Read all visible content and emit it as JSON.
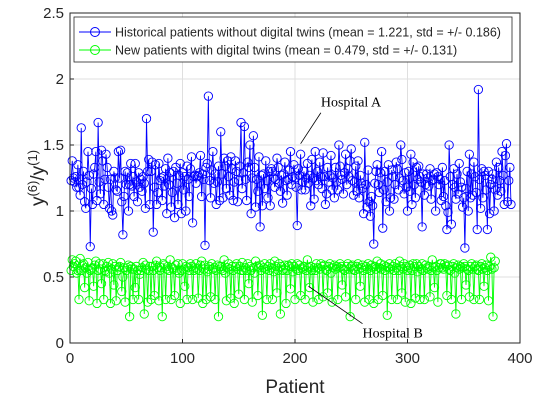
{
  "chart_data": {
    "type": "line",
    "title": "",
    "xlabel": "Patient",
    "ylabel": {
      "base": "y",
      "num": "(6)",
      "slash": "/y",
      "den": "(1)"
    },
    "xlim": [
      0,
      400
    ],
    "ylim": [
      0,
      2.5
    ],
    "xticks": [
      0,
      100,
      200,
      300,
      400
    ],
    "yticks": [
      0,
      0.5,
      1,
      1.5,
      2,
      2.5
    ],
    "xtick_labels": [
      "0",
      "100",
      "200",
      "300",
      "400"
    ],
    "ytick_labels": [
      "0",
      "0.5",
      "1",
      "1.5",
      "2",
      "2.5"
    ],
    "grid": true,
    "legend_position": "top",
    "marker": "circle",
    "series": [
      {
        "name": "Historical patients without digital twins (mean = 1.221, std = +/- 0.186)",
        "color": "#0000ff",
        "values": [
          1.23,
          1.38,
          1.25,
          1.22,
          1.26,
          1.18,
          1.35,
          1.18,
          1.12,
          1.63,
          1.2,
          1.3,
          1.07,
          1.02,
          1.22,
          1.45,
          1.27,
          0.73,
          1.17,
          1.05,
          1.28,
          1.33,
          1.45,
          1.08,
          1.67,
          1.22,
          1.13,
          1.46,
          1.38,
          1.05,
          1.24,
          1.43,
          1.33,
          1.18,
          1.02,
          1.24,
          1.0,
          0.97,
          1.3,
          1.25,
          1.16,
          1.15,
          1.45,
          1.25,
          1.46,
          1.07,
          0.82,
          1.11,
          1.3,
          1.2,
          1.29,
          1.0,
          1.2,
          1.36,
          1.19,
          1.26,
          1.11,
          1.36,
          1.22,
          1.07,
          1.29,
          1.18,
          1.24,
          1.15,
          1.26,
          1.21,
          1.02,
          1.7,
          1.3,
          1.39,
          1.05,
          1.3,
          1.37,
          0.84,
          1.18,
          1.35,
          1.05,
          1.14,
          1.36,
          1.23,
          1.25,
          1.08,
          1.26,
          1.19,
          1.32,
          0.98,
          1.4,
          1.2,
          1.29,
          1.03,
          1.14,
          1.3,
          0.95,
          1.33,
          1.21,
          1.05,
          1.27,
          1.36,
          0.98,
          1.29,
          1.16,
          1.26,
          1.0,
          1.34,
          1.24,
          1.11,
          1.32,
          1.41,
          0.91,
          1.26,
          1.27,
          1.21,
          1.26,
          1.27,
          1.29,
          1.42,
          1.11,
          1.28,
          1.24,
          0.74,
          1.33,
          1.36,
          1.87,
          1.23,
          1.1,
          1.31,
          1.45,
          1.21,
          1.28,
          1.05,
          1.22,
          1.34,
          1.08,
          1.6,
          1.28,
          1.1,
          1.4,
          1.34,
          1.17,
          1.38,
          1.26,
          1.12,
          1.41,
          1.32,
          1.08,
          1.22,
          1.38,
          1.3,
          1.07,
          1.23,
          1.34,
          1.67,
          1.17,
          1.29,
          1.64,
          1.24,
          1.08,
          1.37,
          1.33,
          1.5,
          0.98,
          1.25,
          1.57,
          1.33,
          1.03,
          1.24,
          1.15,
          1.41,
          0.88,
          1.27,
          1.04,
          1.28,
          1.17,
          1.38,
          1.23,
          1.1,
          1.3,
          1.04,
          1.32,
          1.3,
          1.25,
          1.18,
          1.24,
          1.4,
          1.33,
          1.21,
          1.15,
          1.27,
          1.06,
          1.28,
          1.37,
          1.23,
          1.12,
          1.24,
          1.31,
          1.45,
          1.2,
          1.26,
          1.35,
          1.25,
          1.18,
          0.89,
          1.32,
          1.27,
          1.43,
          1.16,
          1.22,
          1.3,
          1.16,
          1.25,
          1.36,
          1.21,
          1.27,
          1.04,
          1.39,
          1.25,
          1.09,
          1.45,
          1.23,
          1.3,
          1.2,
          1.37,
          1.26,
          1.17,
          1.44,
          1.26,
          1.05,
          1.13,
          1.33,
          1.22,
          1.27,
          1.42,
          1.16,
          1.25,
          1.1,
          1.33,
          1.22,
          1.16,
          1.5,
          1.34,
          1.27,
          1.24,
          1.13,
          1.29,
          1.43,
          1.2,
          1.32,
          1.26,
          1.38,
          1.47,
          1.23,
          1.12,
          1.22,
          1.34,
          1.15,
          1.38,
          1.1,
          1.27,
          1.21,
          1.17,
          0.98,
          1.52,
          1.2,
          1.03,
          1.31,
          1.07,
          0.96,
          1.11,
          1.04,
          0.75,
          1.21,
          1.3,
          1.35,
          1.2,
          1.14,
          1.29,
          1.45,
          0.87,
          1.16,
          1.3,
          1.07,
          1.22,
          1.35,
          1.0,
          1.1,
          1.31,
          1.26,
          1.09,
          1.2,
          1.37,
          1.32,
          1.16,
          1.25,
          1.5,
          1.39,
          1.23,
          1.13,
          1.29,
          1.18,
          1.0,
          1.3,
          1.15,
          1.43,
          1.05,
          1.37,
          1.2,
          1.1,
          1.33,
          1.24,
          1.34,
          1.26,
          1.22,
          0.88,
          1.28,
          1.12,
          1.2,
          1.28,
          1.25,
          1.19,
          1.32,
          1.09,
          1.23,
          1.24,
          1.28,
          1.0,
          1.29,
          1.26,
          1.2,
          1.24,
          1.08,
          1.33,
          1.11,
          1.23,
          1.04,
          0.86,
          0.99,
          1.5,
          1.26,
          0.9,
          1.2,
          1.32,
          1.18,
          1.09,
          1.28,
          1.13,
          1.36,
          1.22,
          1.18,
          1.03,
          1.1,
          0.72,
          1.17,
          1.3,
          1.0,
          1.43,
          1.1,
          1.28,
          1.12,
          1.37,
          1.26,
          1.14,
          0.86,
          1.92,
          1.24,
          1.02,
          1.32,
          1.1,
          1.3,
          1.27,
          1.16,
          0.86,
          1.3,
          0.98,
          1.2,
          1.24,
          1.28,
          1.0,
          1.16,
          1.37,
          1.12,
          1.33,
          1.23,
          1.15,
          1.45,
          1.27,
          1.05,
          1.42,
          1.51,
          1.07,
          1.23,
          1.33,
          1.05
        ]
      },
      {
        "name": "New patients with digital twins (mean = 0.479, std = +/- 0.131)",
        "color": "#00ff00",
        "values": [
          0.55,
          0.63,
          0.58,
          0.6,
          0.62,
          0.53,
          0.55,
          0.33,
          0.64,
          0.55,
          0.59,
          0.6,
          0.42,
          0.57,
          0.53,
          0.61,
          0.32,
          0.55,
          0.56,
          0.57,
          0.43,
          0.59,
          0.62,
          0.3,
          0.55,
          0.6,
          0.56,
          0.45,
          0.6,
          0.33,
          0.55,
          0.54,
          0.58,
          0.61,
          0.53,
          0.3,
          0.56,
          0.6,
          0.44,
          0.58,
          0.32,
          0.55,
          0.57,
          0.58,
          0.61,
          0.39,
          0.5,
          0.57,
          0.31,
          0.55,
          0.57,
          0.59,
          0.2,
          0.58,
          0.56,
          0.33,
          0.56,
          0.42,
          0.58,
          0.55,
          0.33,
          0.52,
          0.55,
          0.57,
          0.61,
          0.22,
          0.59,
          0.56,
          0.31,
          0.55,
          0.58,
          0.33,
          0.58,
          0.55,
          0.36,
          0.59,
          0.62,
          0.57,
          0.32,
          0.55,
          0.57,
          0.2,
          0.6,
          0.59,
          0.33,
          0.56,
          0.58,
          0.55,
          0.63,
          0.33,
          0.57,
          0.56,
          0.36,
          0.59,
          0.55,
          0.6,
          0.53,
          0.3,
          0.55,
          0.6,
          0.56,
          0.43,
          0.58,
          0.33,
          0.57,
          0.55,
          0.6,
          0.58,
          0.33,
          0.55,
          0.57,
          0.6,
          0.56,
          0.34,
          0.55,
          0.59,
          0.62,
          0.3,
          0.56,
          0.59,
          0.33,
          0.54,
          0.56,
          0.58,
          0.35,
          0.6,
          0.56,
          0.57,
          0.33,
          0.55,
          0.59,
          0.2,
          0.58,
          0.56,
          0.58,
          0.55,
          0.63,
          0.53,
          0.32,
          0.57,
          0.6,
          0.56,
          0.34,
          0.58,
          0.55,
          0.3,
          0.58,
          0.6,
          0.56,
          0.37,
          0.58,
          0.55,
          0.61,
          0.55,
          0.33,
          0.57,
          0.55,
          0.6,
          0.45,
          0.58,
          0.55,
          0.31,
          0.57,
          0.53,
          0.62,
          0.58,
          0.36,
          0.57,
          0.59,
          0.55,
          0.21,
          0.57,
          0.6,
          0.56,
          0.33,
          0.58,
          0.55,
          0.6,
          0.57,
          0.33,
          0.54,
          0.62,
          0.58,
          0.38,
          0.55,
          0.6,
          0.22,
          0.58,
          0.55,
          0.56,
          0.59,
          0.3,
          0.55,
          0.59,
          0.58,
          0.41,
          0.6,
          0.54,
          0.58,
          0.33,
          0.56,
          0.6,
          0.55,
          0.59,
          0.36,
          0.57,
          0.56,
          0.58,
          0.33,
          0.55,
          0.63,
          0.57,
          0.42,
          0.58,
          0.55,
          0.31,
          0.57,
          0.55,
          0.6,
          0.57,
          0.33,
          0.56,
          0.6,
          0.58,
          0.35,
          0.59,
          0.56,
          0.55,
          0.38,
          0.58,
          0.6,
          0.53,
          0.31,
          0.57,
          0.59,
          0.56,
          0.58,
          0.33,
          0.57,
          0.6,
          0.58,
          0.44,
          0.56,
          0.55,
          0.35,
          0.58,
          0.6,
          0.56,
          0.2,
          0.58,
          0.59,
          0.56,
          0.55,
          0.33,
          0.58,
          0.6,
          0.56,
          0.43,
          0.57,
          0.59,
          0.55,
          0.31,
          0.58,
          0.56,
          0.6,
          0.33,
          0.55,
          0.59,
          0.57,
          0.3,
          0.58,
          0.56,
          0.62,
          0.33,
          0.57,
          0.6,
          0.56,
          0.36,
          0.59,
          0.55,
          0.58,
          0.21,
          0.57,
          0.6,
          0.56,
          0.33,
          0.58,
          0.55,
          0.6,
          0.57,
          0.33,
          0.55,
          0.62,
          0.58,
          0.38,
          0.56,
          0.6,
          0.31,
          0.58,
          0.55,
          0.57,
          0.59,
          0.3,
          0.55,
          0.6,
          0.58,
          0.34,
          0.6,
          0.54,
          0.58,
          0.33,
          0.56,
          0.6,
          0.55,
          0.33,
          0.59,
          0.57,
          0.56,
          0.58,
          0.35,
          0.55,
          0.63,
          0.57,
          0.42,
          0.58,
          0.55,
          0.31,
          0.57,
          0.6,
          0.6,
          0.57,
          0.56,
          0.6,
          0.58,
          0.36,
          0.59,
          0.56,
          0.55,
          0.33,
          0.58,
          0.6,
          0.53,
          0.22,
          0.57,
          0.59,
          0.56,
          0.58,
          0.33,
          0.57,
          0.6,
          0.58,
          0.44,
          0.56,
          0.55,
          0.35,
          0.58,
          0.6,
          0.56,
          0.33,
          0.58,
          0.59,
          0.56,
          0.55,
          0.33,
          0.58,
          0.6,
          0.56,
          0.43,
          0.57,
          0.59,
          0.55,
          0.32,
          0.58,
          0.65,
          0.56,
          0.2,
          0.57,
          0.62
        ]
      }
    ],
    "annotations": [
      {
        "id": "hospital-a",
        "text": "Hospital A",
        "target": [
          205,
          1.51
        ],
        "label_at": [
          223,
          1.79
        ]
      },
      {
        "id": "hospital-b",
        "text": "Hospital B",
        "target": [
          212,
          0.43
        ],
        "label_at": [
          260,
          0.04
        ]
      }
    ]
  }
}
